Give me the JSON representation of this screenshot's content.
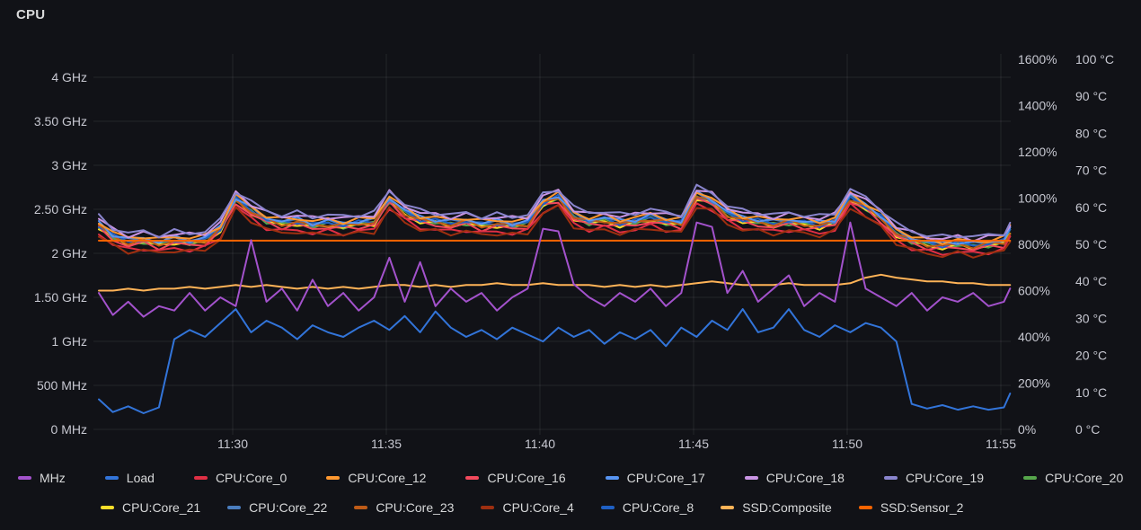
{
  "panel": {
    "title": "CPU"
  },
  "colors": {
    "background": "#111217",
    "grid": "rgba(204,204,220,0.10)",
    "tick_text": "#C7C8D1",
    "legend_text": "#D8D9DA"
  },
  "axes": {
    "x": {
      "labels": [
        "11:30",
        "11:35",
        "11:40",
        "11:45",
        "11:50",
        "11:55"
      ],
      "minutes": [
        30,
        35,
        40,
        45,
        50,
        55
      ]
    },
    "left_frequency": {
      "labels": [
        "4 GHz",
        "3.50 GHz",
        "3 GHz",
        "2.50 GHz",
        "2 GHz",
        "1.50 GHz",
        "1 GHz",
        "500 MHz",
        "0 MHz"
      ],
      "ghz": [
        4,
        3.5,
        3,
        2.5,
        2,
        1.5,
        1,
        0.5,
        0
      ]
    },
    "right_percent": {
      "labels": [
        "1600%",
        "1400%",
        "1200%",
        "1000%",
        "800%",
        "600%",
        "400%",
        "200%",
        "0%"
      ],
      "values": [
        1600,
        1400,
        1200,
        1000,
        800,
        600,
        400,
        200,
        0
      ]
    },
    "right_temperature": {
      "labels": [
        "100 °C",
        "90 °C",
        "80 °C",
        "70 °C",
        "60 °C",
        "50 °C",
        "40 °C",
        "30 °C",
        "20 °C",
        "10 °C",
        "0 °C"
      ],
      "values": [
        100,
        90,
        80,
        70,
        60,
        50,
        40,
        30,
        20,
        10,
        0
      ]
    }
  },
  "legend": {
    "rows": [
      [
        "MHz",
        "Load",
        "CPU:Core_0",
        "CPU:Core_12",
        "CPU:Core_16",
        "CPU:Core_17",
        "CPU:Core_18",
        "CPU:Core_19",
        "CPU:Core_20"
      ],
      [
        "CPU:Core_21",
        "CPU:Core_22",
        "CPU:Core_23",
        "CPU:Core_4",
        "CPU:Core_8",
        "SSD:Composite",
        "SSD:Sensor_2"
      ]
    ]
  },
  "chart_data": {
    "type": "line",
    "title": "CPU",
    "x_axis": "time of day (HH:MM)",
    "x_range": [
      "11:25.6",
      "11:55.3"
    ],
    "x_minutes_after_11": [
      25.6,
      26.1,
      26.6,
      27.1,
      27.6,
      28.1,
      28.6,
      29.1,
      29.6,
      30.1,
      30.6,
      31.1,
      31.6,
      32.1,
      32.6,
      33.1,
      33.6,
      34.1,
      34.6,
      35.1,
      35.6,
      36.1,
      36.6,
      37.1,
      37.6,
      38.1,
      38.6,
      39.1,
      39.6,
      40.1,
      40.6,
      41.1,
      41.6,
      42.1,
      42.6,
      43.1,
      43.6,
      44.1,
      44.6,
      45.1,
      45.6,
      46.1,
      46.6,
      47.1,
      47.6,
      48.1,
      48.6,
      49.1,
      49.6,
      50.1,
      50.6,
      51.1,
      51.6,
      52.1,
      52.6,
      53.1,
      53.6,
      54.1,
      54.6,
      55.1,
      55.3
    ],
    "axis_ranges": {
      "ghz": [
        0,
        4.31
      ],
      "percent": [
        0,
        1642
      ],
      "temp_c": [
        0,
        102.7
      ]
    },
    "grid": true,
    "legend_position": "bottom",
    "temp_base_c": [
      55,
      52,
      50.5,
      51,
      50,
      51,
      50.5,
      51,
      54,
      62,
      59,
      56.5,
      55.5,
      56,
      55,
      55.5,
      55,
      55.5,
      56,
      62,
      58.5,
      56.5,
      56,
      55.5,
      56,
      55,
      55.5,
      55,
      55.5,
      61,
      62.5,
      57.5,
      56,
      56.5,
      55.5,
      56,
      57,
      56,
      55.5,
      63,
      61.5,
      58,
      56.5,
      56,
      55.5,
      56,
      55.5,
      55,
      56,
      62.5,
      60,
      57,
      53,
      51,
      50,
      49.5,
      50,
      49.5,
      50,
      50.5,
      53.5
    ],
    "temp_band_note": "12 CPU core temperature series cluster around temp_base_c; offset = typical °C above/below band centre",
    "series": [
      {
        "name": "CPU:Core_20",
        "axis": "temp",
        "color": "#56A64B",
        "base": "temp_base",
        "offset": -0.2
      },
      {
        "name": "CPU:Core_21",
        "axis": "temp",
        "color": "#FADE2A",
        "base": "temp_base",
        "offset": -0.4
      },
      {
        "name": "CPU:Core_16",
        "axis": "temp",
        "color": "#F2495C",
        "base": "temp_base",
        "offset": -0.8
      },
      {
        "name": "CPU:Core_22",
        "axis": "temp",
        "color": "#4A7DBE",
        "base": "temp_base",
        "offset": 0.5
      },
      {
        "name": "CPU:Core_8",
        "axis": "temp",
        "color": "#1F60C4",
        "base": "temp_base",
        "offset": 0.3
      },
      {
        "name": "CPU:Core_23",
        "axis": "temp",
        "color": "#BE5B17",
        "base": "temp_base",
        "offset": 0
      },
      {
        "name": "CPU:Core_17",
        "axis": "temp",
        "color": "#5794F2",
        "base": "temp_base",
        "offset": 0.8
      },
      {
        "name": "CPU:Core_12",
        "axis": "temp",
        "color": "#FF9830",
        "base": "temp_base",
        "offset": 1.2
      },
      {
        "name": "CPU:Core_18",
        "axis": "temp",
        "color": "#CA95E5",
        "base": "temp_base",
        "offset": 2
      },
      {
        "name": "CPU:Core_19",
        "axis": "temp",
        "color": "#8A85CE",
        "base": "temp_base",
        "offset": 2.5
      },
      {
        "name": "CPU:Core_0",
        "axis": "temp",
        "color": "#E02F44",
        "base": "temp_base",
        "offset": -2
      },
      {
        "name": "CPU:Core_4",
        "axis": "temp",
        "color": "#9E2F10",
        "base": "temp_base",
        "offset": -2.5
      },
      {
        "name": "SSD:Sensor_2",
        "axis": "temp",
        "color": "#FA6400",
        "constant": 51
      },
      {
        "name": "SSD:Composite",
        "axis": "temp",
        "color": "#FFB357",
        "values": [
          37.5,
          37.5,
          38,
          37.5,
          38,
          38,
          38.5,
          38,
          38.5,
          39,
          38.5,
          39,
          38.5,
          38,
          38.5,
          38,
          38.5,
          38,
          38.5,
          39,
          39,
          38.5,
          39,
          38.5,
          39,
          39,
          39.5,
          39,
          39,
          39.5,
          39,
          39,
          39,
          38.5,
          39,
          38.5,
          39,
          38.5,
          39,
          39.5,
          40,
          39.5,
          39,
          39,
          39,
          39.5,
          39,
          39,
          39,
          39.5,
          41,
          41.8,
          41,
          40.5,
          40,
          40,
          39.5,
          39.5,
          39,
          39,
          39
        ]
      },
      {
        "name": "Load",
        "axis": "percent",
        "color": "#3274D9",
        "values": [
          130,
          75,
          100,
          70,
          95,
          390,
          430,
          400,
          460,
          520,
          420,
          470,
          440,
          390,
          450,
          420,
          400,
          440,
          470,
          430,
          490,
          420,
          510,
          440,
          400,
          430,
          390,
          440,
          410,
          380,
          440,
          400,
          430,
          370,
          420,
          390,
          430,
          360,
          440,
          400,
          470,
          430,
          520,
          420,
          440,
          520,
          430,
          400,
          450,
          420,
          460,
          440,
          380,
          110,
          90,
          105,
          85,
          100,
          85,
          95,
          155
        ]
      },
      {
        "name": "MHz",
        "axis": "ghz",
        "color": "#A352CC",
        "values": [
          1.55,
          1.3,
          1.45,
          1.28,
          1.4,
          1.35,
          1.55,
          1.35,
          1.5,
          1.4,
          2.15,
          1.45,
          1.6,
          1.35,
          1.7,
          1.4,
          1.55,
          1.35,
          1.5,
          1.95,
          1.45,
          1.9,
          1.4,
          1.6,
          1.45,
          1.55,
          1.35,
          1.5,
          1.6,
          2.28,
          2.25,
          1.65,
          1.5,
          1.4,
          1.55,
          1.45,
          1.6,
          1.4,
          1.55,
          2.35,
          2.3,
          1.55,
          1.8,
          1.45,
          1.6,
          1.75,
          1.4,
          1.55,
          1.45,
          2.35,
          1.6,
          1.5,
          1.4,
          1.55,
          1.35,
          1.5,
          1.45,
          1.55,
          1.4,
          1.45,
          1.6
        ]
      }
    ]
  }
}
